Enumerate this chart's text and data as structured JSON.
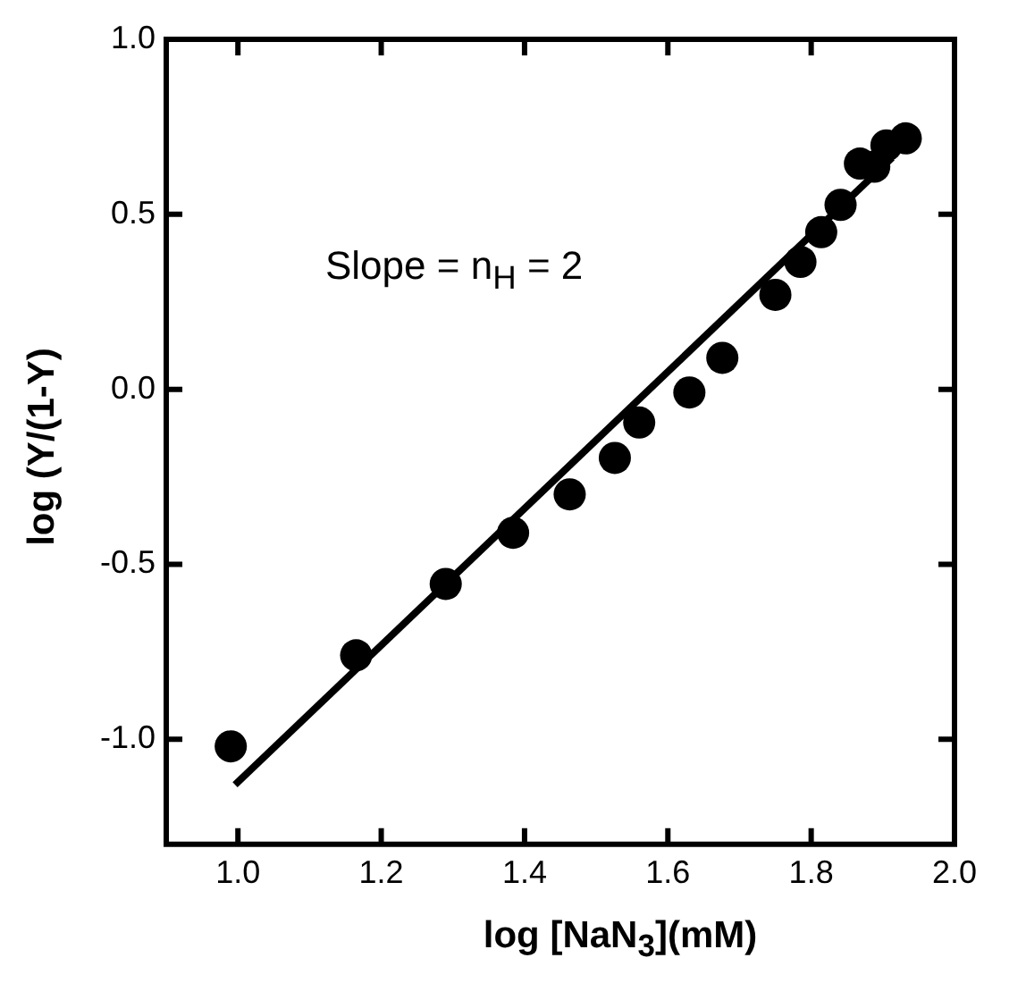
{
  "chart_data": {
    "type": "scatter",
    "xlabel": "log [NaN$_{3}$](mM)",
    "ylabel": "log (Y/(1-Y)",
    "annotations": [
      "Slope = n$_{H}$ = 2"
    ],
    "xlim": [
      0.9,
      2.0
    ],
    "xticks": [
      {
        "value": 1,
        "label": "1.0"
      },
      1.2,
      1.4,
      1.6,
      1.8,
      {
        "value": 2,
        "label": "2.0"
      }
    ],
    "ylim": [
      -1.3,
      1.0
    ],
    "yticks": [
      {
        "value": -1,
        "label": "-1.0"
      },
      -0.5,
      {
        "value": 0,
        "label": "0.0"
      },
      0.5,
      {
        "value": 1,
        "label": "1.0"
      }
    ],
    "legend": false,
    "series": [
      {
        "type": "scatter",
        "color": "#000000",
        "marker": "circle",
        "x": [
          0.99,
          1.165,
          1.29,
          1.384,
          1.463,
          1.526,
          1.56,
          1.63,
          1.676,
          1.75,
          1.785,
          1.814,
          1.841,
          1.868,
          1.888,
          1.905,
          1.932
        ],
        "values": [
          -1.02,
          -0.76,
          -0.556,
          -0.41,
          -0.3,
          -0.196,
          -0.095,
          -0.009,
          0.09,
          0.27,
          0.364,
          0.449,
          0.527,
          0.645,
          0.636,
          0.697,
          0.717
        ]
      },
      {
        "type": "line",
        "color": "#000000",
        "marker": "none",
        "line_style": "solid",
        "x": [
          0.996,
          1.913
        ],
        "values": [
          -1.13,
          0.662
        ]
      }
    ]
  }
}
